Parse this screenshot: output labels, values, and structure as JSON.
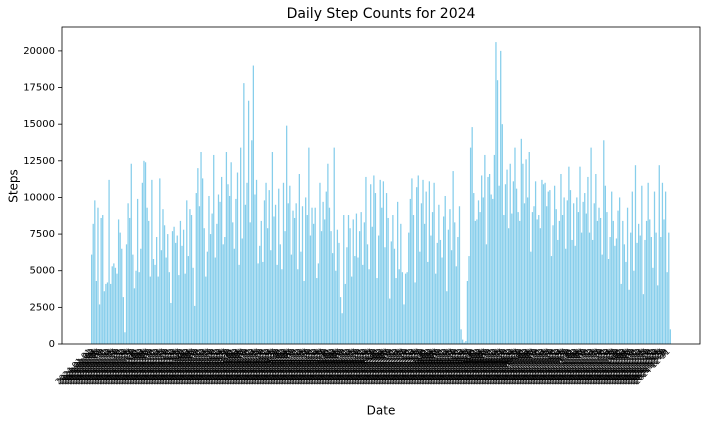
{
  "chart_data": {
    "type": "bar",
    "title": "Daily Step Counts for 2024",
    "xlabel": "Date",
    "ylabel": "Steps",
    "color": "#87ceeb",
    "ylim": [
      0,
      21630
    ],
    "yticks": [
      0,
      2500,
      5000,
      7500,
      10000,
      12500,
      15000,
      17500,
      20000
    ],
    "categories": [
      "2024-01-01",
      "2024-01-02",
      "2024-01-03",
      "2024-01-04",
      "2024-01-05",
      "2024-01-06",
      "2024-01-07",
      "2024-01-08",
      "2024-01-09",
      "2024-01-10",
      "2024-01-11",
      "2024-01-12",
      "2024-01-13",
      "2024-01-14",
      "2024-01-15",
      "2024-01-16",
      "2024-01-17",
      "2024-01-18",
      "2024-01-19",
      "2024-01-20",
      "2024-01-21",
      "2024-01-22",
      "2024-01-23",
      "2024-01-24",
      "2024-01-25",
      "2024-01-26",
      "2024-01-27",
      "2024-01-28",
      "2024-01-29",
      "2024-01-30",
      "2024-01-31",
      "2024-02-01",
      "2024-02-02",
      "2024-02-03",
      "2024-02-04",
      "2024-02-05",
      "2024-02-06",
      "2024-02-07",
      "2024-02-08",
      "2024-02-09",
      "2024-02-10",
      "2024-02-11",
      "2024-02-12",
      "2024-02-13",
      "2024-02-14",
      "2024-02-15",
      "2024-02-16",
      "2024-02-17",
      "2024-02-18",
      "2024-02-19",
      "2024-02-20",
      "2024-02-21",
      "2024-02-22",
      "2024-02-23",
      "2024-02-24",
      "2024-02-25",
      "2024-02-26",
      "2024-02-27",
      "2024-02-28",
      "2024-02-29",
      "2024-03-01",
      "2024-03-02",
      "2024-03-03",
      "2024-03-04",
      "2024-03-05",
      "2024-03-06",
      "2024-03-07",
      "2024-03-08",
      "2024-03-09",
      "2024-03-10",
      "2024-03-11",
      "2024-03-12",
      "2024-03-13",
      "2024-03-14",
      "2024-03-15",
      "2024-03-16",
      "2024-03-17",
      "2024-03-18",
      "2024-03-19",
      "2024-03-20",
      "2024-03-21",
      "2024-03-22",
      "2024-03-23",
      "2024-03-24",
      "2024-03-25",
      "2024-03-26",
      "2024-03-27",
      "2024-03-28",
      "2024-03-29",
      "2024-03-30",
      "2024-03-31",
      "2024-04-01",
      "2024-04-02",
      "2024-04-03",
      "2024-04-04",
      "2024-04-05",
      "2024-04-06",
      "2024-04-07",
      "2024-04-08",
      "2024-04-09",
      "2024-04-10",
      "2024-04-11",
      "2024-04-12",
      "2024-04-13",
      "2024-04-14",
      "2024-04-15",
      "2024-04-16",
      "2024-04-17",
      "2024-04-18",
      "2024-04-19",
      "2024-04-20",
      "2024-04-21",
      "2024-04-22",
      "2024-04-23",
      "2024-04-24",
      "2024-04-25",
      "2024-04-26",
      "2024-04-27",
      "2024-04-28",
      "2024-04-29",
      "2024-04-30",
      "2024-05-01",
      "2024-05-02",
      "2024-05-03",
      "2024-05-04",
      "2024-05-05",
      "2024-05-06",
      "2024-05-07",
      "2024-05-08",
      "2024-05-09",
      "2024-05-10",
      "2024-05-11",
      "2024-05-12",
      "2024-05-13",
      "2024-05-14",
      "2024-05-15",
      "2024-05-16",
      "2024-05-17",
      "2024-05-18",
      "2024-05-19",
      "2024-05-20",
      "2024-05-21",
      "2024-05-22",
      "2024-05-23",
      "2024-05-24",
      "2024-05-25",
      "2024-05-26",
      "2024-05-27",
      "2024-05-28",
      "2024-05-29",
      "2024-05-30",
      "2024-05-31",
      "2024-06-01",
      "2024-06-02",
      "2024-06-03",
      "2024-06-04",
      "2024-06-05",
      "2024-06-06",
      "2024-06-07",
      "2024-06-08",
      "2024-06-09",
      "2024-06-10",
      "2024-06-11",
      "2024-06-12",
      "2024-06-13",
      "2024-06-14",
      "2024-06-15",
      "2024-06-16",
      "2024-06-17",
      "2024-06-18",
      "2024-06-19",
      "2024-06-20",
      "2024-06-21",
      "2024-06-22",
      "2024-06-23",
      "2024-06-24",
      "2024-06-25",
      "2024-06-26",
      "2024-06-27",
      "2024-06-28",
      "2024-06-29",
      "2024-06-30",
      "2024-07-01",
      "2024-07-02",
      "2024-07-03",
      "2024-07-04",
      "2024-07-05",
      "2024-07-06",
      "2024-07-07",
      "2024-07-08",
      "2024-07-09",
      "2024-07-10",
      "2024-07-11",
      "2024-07-12",
      "2024-07-13",
      "2024-07-14",
      "2024-07-15",
      "2024-07-16",
      "2024-07-17",
      "2024-07-18",
      "2024-07-19",
      "2024-07-20",
      "2024-07-21",
      "2024-07-22",
      "2024-07-23",
      "2024-07-24",
      "2024-07-25",
      "2024-07-26",
      "2024-07-27",
      "2024-07-28",
      "2024-07-29",
      "2024-07-30",
      "2024-07-31",
      "2024-08-01",
      "2024-08-02",
      "2024-08-03",
      "2024-08-04",
      "2024-08-05",
      "2024-08-06",
      "2024-08-07",
      "2024-08-08",
      "2024-08-09",
      "2024-08-10",
      "2024-08-11",
      "2024-08-12",
      "2024-08-13",
      "2024-08-14",
      "2024-08-15",
      "2024-08-16",
      "2024-08-17",
      "2024-08-18",
      "2024-08-19",
      "2024-08-20",
      "2024-08-21",
      "2024-08-22",
      "2024-08-23",
      "2024-08-24",
      "2024-08-25",
      "2024-08-26",
      "2024-08-27",
      "2024-08-28",
      "2024-08-29",
      "2024-08-30",
      "2024-08-31",
      "2024-09-01",
      "2024-09-02",
      "2024-09-03",
      "2024-09-04",
      "2024-09-05",
      "2024-09-06",
      "2024-09-07",
      "2024-09-08",
      "2024-09-09",
      "2024-09-10",
      "2024-09-11",
      "2024-09-12",
      "2024-09-13",
      "2024-09-14",
      "2024-09-15",
      "2024-09-16",
      "2024-09-17",
      "2024-09-18",
      "2024-09-19",
      "2024-09-20",
      "2024-09-21",
      "2024-09-22",
      "2024-09-23",
      "2024-09-24",
      "2024-09-25",
      "2024-09-26",
      "2024-09-27",
      "2024-09-28",
      "2024-09-29",
      "2024-09-30",
      "2024-10-01",
      "2024-10-02",
      "2024-10-03",
      "2024-10-04",
      "2024-10-05",
      "2024-10-06",
      "2024-10-07",
      "2024-10-08",
      "2024-10-09",
      "2024-10-10",
      "2024-10-11",
      "2024-10-12",
      "2024-10-13",
      "2024-10-14",
      "2024-10-15",
      "2024-10-16",
      "2024-10-17",
      "2024-10-18",
      "2024-10-19",
      "2024-10-20",
      "2024-10-21",
      "2024-10-22",
      "2024-10-23",
      "2024-10-24",
      "2024-10-25",
      "2024-10-26",
      "2024-10-27",
      "2024-10-28",
      "2024-10-29",
      "2024-10-30",
      "2024-10-31",
      "2024-11-01",
      "2024-11-02",
      "2024-11-03",
      "2024-11-04",
      "2024-11-05",
      "2024-11-06",
      "2024-11-07",
      "2024-11-08",
      "2024-11-09",
      "2024-11-10",
      "2024-11-11",
      "2024-11-12",
      "2024-11-13",
      "2024-11-14",
      "2024-11-15",
      "2024-11-16",
      "2024-11-17",
      "2024-11-18",
      "2024-11-19",
      "2024-11-20",
      "2024-11-21",
      "2024-11-22",
      "2024-11-23",
      "2024-11-24",
      "2024-11-25",
      "2024-11-26",
      "2024-11-27",
      "2024-11-28",
      "2024-11-29",
      "2024-11-30",
      "2024-12-01",
      "2024-12-02",
      "2024-12-03",
      "2024-12-04",
      "2024-12-05",
      "2024-12-06",
      "2024-12-07",
      "2024-12-08",
      "2024-12-09",
      "2024-12-10",
      "2024-12-11",
      "2024-12-12",
      "2024-12-13",
      "2024-12-14",
      "2024-12-15",
      "2024-12-16",
      "2024-12-17",
      "2024-12-18",
      "2024-12-19",
      "2024-12-20",
      "2024-12-21",
      "2024-12-22",
      "2024-12-23",
      "2024-12-24",
      "2024-12-25",
      "2024-12-26",
      "2024-12-27",
      "2024-12-28",
      "2024-12-29",
      "2024-12-30",
      "2024-12-31"
    ],
    "values": [
      6100,
      8200,
      9800,
      4300,
      9300,
      2700,
      8600,
      8800,
      3600,
      4100,
      4200,
      11200,
      4100,
      5300,
      5500,
      5200,
      4800,
      8500,
      7600,
      6500,
      3200,
      800,
      6800,
      9600,
      8600,
      12300,
      6100,
      3800,
      5000,
      9900,
      4900,
      6500,
      11000,
      12500,
      12400,
      9300,
      8400,
      4600,
      11200,
      5800,
      5400,
      7300,
      4600,
      11300,
      6400,
      9200,
      8100,
      5900,
      7500,
      4900,
      2800,
      7700,
      8000,
      6900,
      7400,
      4700,
      8400,
      6700,
      7800,
      4800,
      9800,
      6000,
      9200,
      8800,
      5200,
      2600,
      10300,
      12000,
      9400,
      13100,
      11300,
      7900,
      4600,
      6300,
      10100,
      7500,
      8900,
      12900,
      5900,
      8200,
      10200,
      9700,
      11400,
      6800,
      7300,
      13100,
      10900,
      10100,
      12400,
      8300,
      6500,
      9900,
      11700,
      5400,
      13400,
      7200,
      17800,
      9500,
      11000,
      16600,
      8300,
      13900,
      19000,
      10200,
      11200,
      5500,
      6700,
      8400,
      5600,
      9800,
      11000,
      7900,
      10500,
      6400,
      13100,
      8700,
      9500,
      5400,
      10600,
      6800,
      5100,
      11000,
      7700,
      14900,
      9600,
      10800,
      6100,
      9100,
      8600,
      9600,
      5100,
      11600,
      6300,
      9400,
      4300,
      10000,
      8800,
      13400,
      7400,
      9300,
      8200,
      9300,
      4500,
      5500,
      11000,
      7700,
      9700,
      8500,
      10400,
      12300,
      9300,
      7700,
      6200,
      13400,
      5000,
      7800,
      6900,
      3200,
      2100,
      8800,
      4100,
      6600,
      8800,
      7900,
      4600,
      8500,
      6000,
      8900,
      5900,
      7700,
      9000,
      5400,
      8300,
      11400,
      6800,
      5100,
      10900,
      8000,
      11500,
      10300,
      4500,
      7400,
      11200,
      9300,
      11100,
      6600,
      10300,
      8600,
      3100,
      7000,
      8800,
      6500,
      4500,
      9700,
      5100,
      8200,
      4900,
      2700,
      4800,
      4900,
      7600,
      9900,
      11300,
      8800,
      4200,
      10700,
      11500,
      6300,
      9600,
      11200,
      8200,
      10400,
      5600,
      11100,
      7400,
      9000,
      11000,
      4800,
      6900,
      9500,
      7100,
      5900,
      8700,
      10100,
      3600,
      7800,
      9200,
      6400,
      11800,
      8300,
      5300,
      7300,
      9400,
      1000,
      300,
      100,
      200,
      4300,
      6000,
      13400,
      14800,
      10300,
      8400,
      8500,
      9800,
      9000,
      11500,
      10000,
      12900,
      6800,
      11400,
      11600,
      10200,
      9900,
      12900,
      20600,
      18000,
      10800,
      20000,
      15000,
      8800,
      10900,
      11900,
      7900,
      12300,
      8900,
      11100,
      13400,
      10600,
      9000,
      8400,
      14000,
      12300,
      9600,
      12600,
      10000,
      13100,
      6300,
      9000,
      9400,
      11100,
      8500,
      8800,
      7900,
      11200,
      10900,
      11000,
      9400,
      10400,
      10500,
      6000,
      8100,
      10800,
      9200,
      7100,
      8400,
      11600,
      8800,
      10000,
      6500,
      9800,
      12100,
      10500,
      7100,
      9600,
      6700,
      10000,
      9000,
      12100,
      7600,
      9700,
      10300,
      8900,
      11400,
      7600,
      13400,
      7100,
      9600,
      11600,
      8400,
      9300,
      8600,
      6100,
      13900,
      10800,
      9000,
      5800,
      7300,
      10400,
      8400,
      6700,
      7200,
      9100,
      10000,
      4100,
      8400,
      6800,
      5600,
      9300,
      3700,
      7600,
      10400,
      5000,
      12200,
      6900,
      8200,
      7400,
      10800,
      3400,
      7100,
      8400,
      11000,
      8500,
      7300,
      5200,
      10400,
      7600,
      4000,
      12200,
      7300,
      11000,
      8500,
      10400,
      4900,
      7600,
      1000
    ]
  }
}
